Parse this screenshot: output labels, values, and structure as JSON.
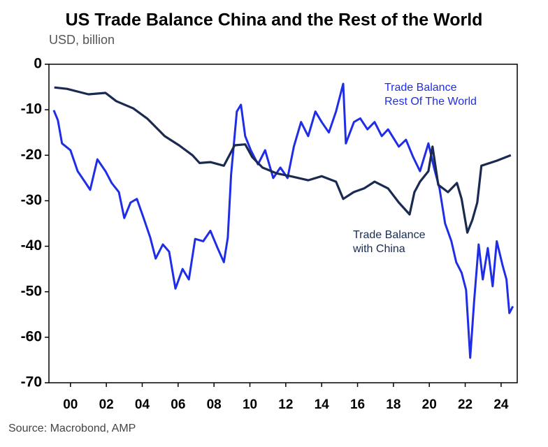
{
  "chart_data": {
    "type": "line",
    "title": "US Trade Balance China and the Rest of the World",
    "subtitle": "USD, billion",
    "source": "Source: Macrobond, AMP",
    "xlim": [
      1998.8,
      2024.9
    ],
    "ylim": [
      -70,
      0
    ],
    "yticks": [
      0,
      -10,
      -20,
      -30,
      -40,
      -50,
      -60,
      -70
    ],
    "xticks": [
      {
        "value": 2000,
        "label": "00"
      },
      {
        "value": 2002,
        "label": "02"
      },
      {
        "value": 2004,
        "label": "04"
      },
      {
        "value": 2006,
        "label": "06"
      },
      {
        "value": 2008,
        "label": "08"
      },
      {
        "value": 2010,
        "label": "10"
      },
      {
        "value": 2012,
        "label": "12"
      },
      {
        "value": 2014,
        "label": "14"
      },
      {
        "value": 2016,
        "label": "16"
      },
      {
        "value": 2018,
        "label": "18"
      },
      {
        "value": 2020,
        "label": "20"
      },
      {
        "value": 2022,
        "label": "22"
      },
      {
        "value": 2024,
        "label": "24"
      }
    ],
    "series": [
      {
        "name": "Trade Balance Rest Of The World",
        "color": "#1f2de6",
        "x": [
          1999.07,
          1999.3,
          1999.53,
          2000,
          2000.4,
          2000.8,
          2001.1,
          2001.5,
          2001.95,
          2002.3,
          2002.7,
          2003.0,
          2003.35,
          2003.7,
          2004.05,
          2004.45,
          2004.75,
          2005.15,
          2005.5,
          2005.85,
          2006.25,
          2006.6,
          2006.95,
          2007.4,
          2007.8,
          2008.2,
          2008.55,
          2008.77,
          2008.95,
          2009.27,
          2009.5,
          2009.74,
          2010.05,
          2010.45,
          2010.85,
          2011.3,
          2011.7,
          2012.1,
          2012.45,
          2012.85,
          2013.25,
          2013.65,
          2014.0,
          2014.4,
          2014.8,
          2015.2,
          2015.35,
          2015.8,
          2016.15,
          2016.55,
          2016.95,
          2017.35,
          2017.7,
          2018.3,
          2018.7,
          2019.1,
          2019.48,
          2019.95,
          2020.26,
          2020.57,
          2020.88,
          2021.23,
          2021.5,
          2021.8,
          2022.05,
          2022.28,
          2022.5,
          2022.75,
          2022.98,
          2023.26,
          2023.53,
          2023.76,
          2024.08,
          2024.3,
          2024.46,
          2024.66
        ],
        "values": [
          -10.1,
          -12.3,
          -17.4,
          -18.9,
          -23.5,
          -25.8,
          -27.6,
          -20.9,
          -23.5,
          -26.1,
          -28.1,
          -33.8,
          -30.4,
          -29.6,
          -33.5,
          -38.1,
          -42.7,
          -39.6,
          -41.2,
          -49.3,
          -45,
          -47.3,
          -38.4,
          -38.9,
          -36.6,
          -40.4,
          -43.5,
          -38.1,
          -24.3,
          -10.4,
          -8.9,
          -15.8,
          -18.9,
          -22,
          -18.9,
          -25,
          -22.7,
          -25,
          -18.1,
          -12.7,
          -15.8,
          -10.4,
          -12.7,
          -15,
          -10.4,
          -4.3,
          -17.4,
          -12.7,
          -11.9,
          -14.3,
          -12.7,
          -15.8,
          -14.3,
          -18.1,
          -16.6,
          -20.4,
          -23.5,
          -17.4,
          -22.7,
          -27.3,
          -35,
          -38.9,
          -43.5,
          -45.8,
          -49.6,
          -64.5,
          -51.9,
          -39.6,
          -47.3,
          -40.4,
          -48.8,
          -38.9,
          -44.2,
          -47.3,
          -54.7,
          -53.2
        ]
      },
      {
        "name": "Trade Balance with China",
        "color": "#1a2a50",
        "x": [
          1999.1,
          1999.8,
          2001.0,
          2001.95,
          2002.55,
          2003.5,
          2004.3,
          2005.25,
          2006.05,
          2006.8,
          2007.2,
          2007.8,
          2008.55,
          2009.15,
          2009.74,
          2010.13,
          2010.7,
          2011.5,
          2012.27,
          2013.25,
          2014,
          2014.8,
          2015.2,
          2015.78,
          2016.36,
          2016.95,
          2017.7,
          2018.3,
          2018.9,
          2019.17,
          2019.48,
          2019.95,
          2020.18,
          2020.5,
          2021.04,
          2021.54,
          2021.8,
          2022.12,
          2022.4,
          2022.67,
          2022.9,
          2023.76,
          2024.54
        ],
        "values": [
          -5.1,
          -5.4,
          -6.6,
          -6.3,
          -8.1,
          -9.7,
          -12,
          -15.8,
          -17.8,
          -20,
          -21.7,
          -21.5,
          -22.3,
          -17.8,
          -17.6,
          -20.4,
          -22.7,
          -24,
          -24.6,
          -25.5,
          -24.6,
          -25.8,
          -29.6,
          -28.1,
          -27.3,
          -25.8,
          -27.3,
          -30.4,
          -33,
          -28.1,
          -25.8,
          -23.5,
          -18.1,
          -26.5,
          -28.1,
          -26.1,
          -29.6,
          -37,
          -34.2,
          -30.4,
          -22.3,
          -21.2,
          -20
        ]
      }
    ],
    "annotations": [
      {
        "lines": [
          "Trade Balance",
          "Rest Of The World"
        ],
        "color": "#1f2de6"
      },
      {
        "lines": [
          "Trade Balance",
          "with China"
        ],
        "color": "#1a2a50"
      }
    ]
  }
}
